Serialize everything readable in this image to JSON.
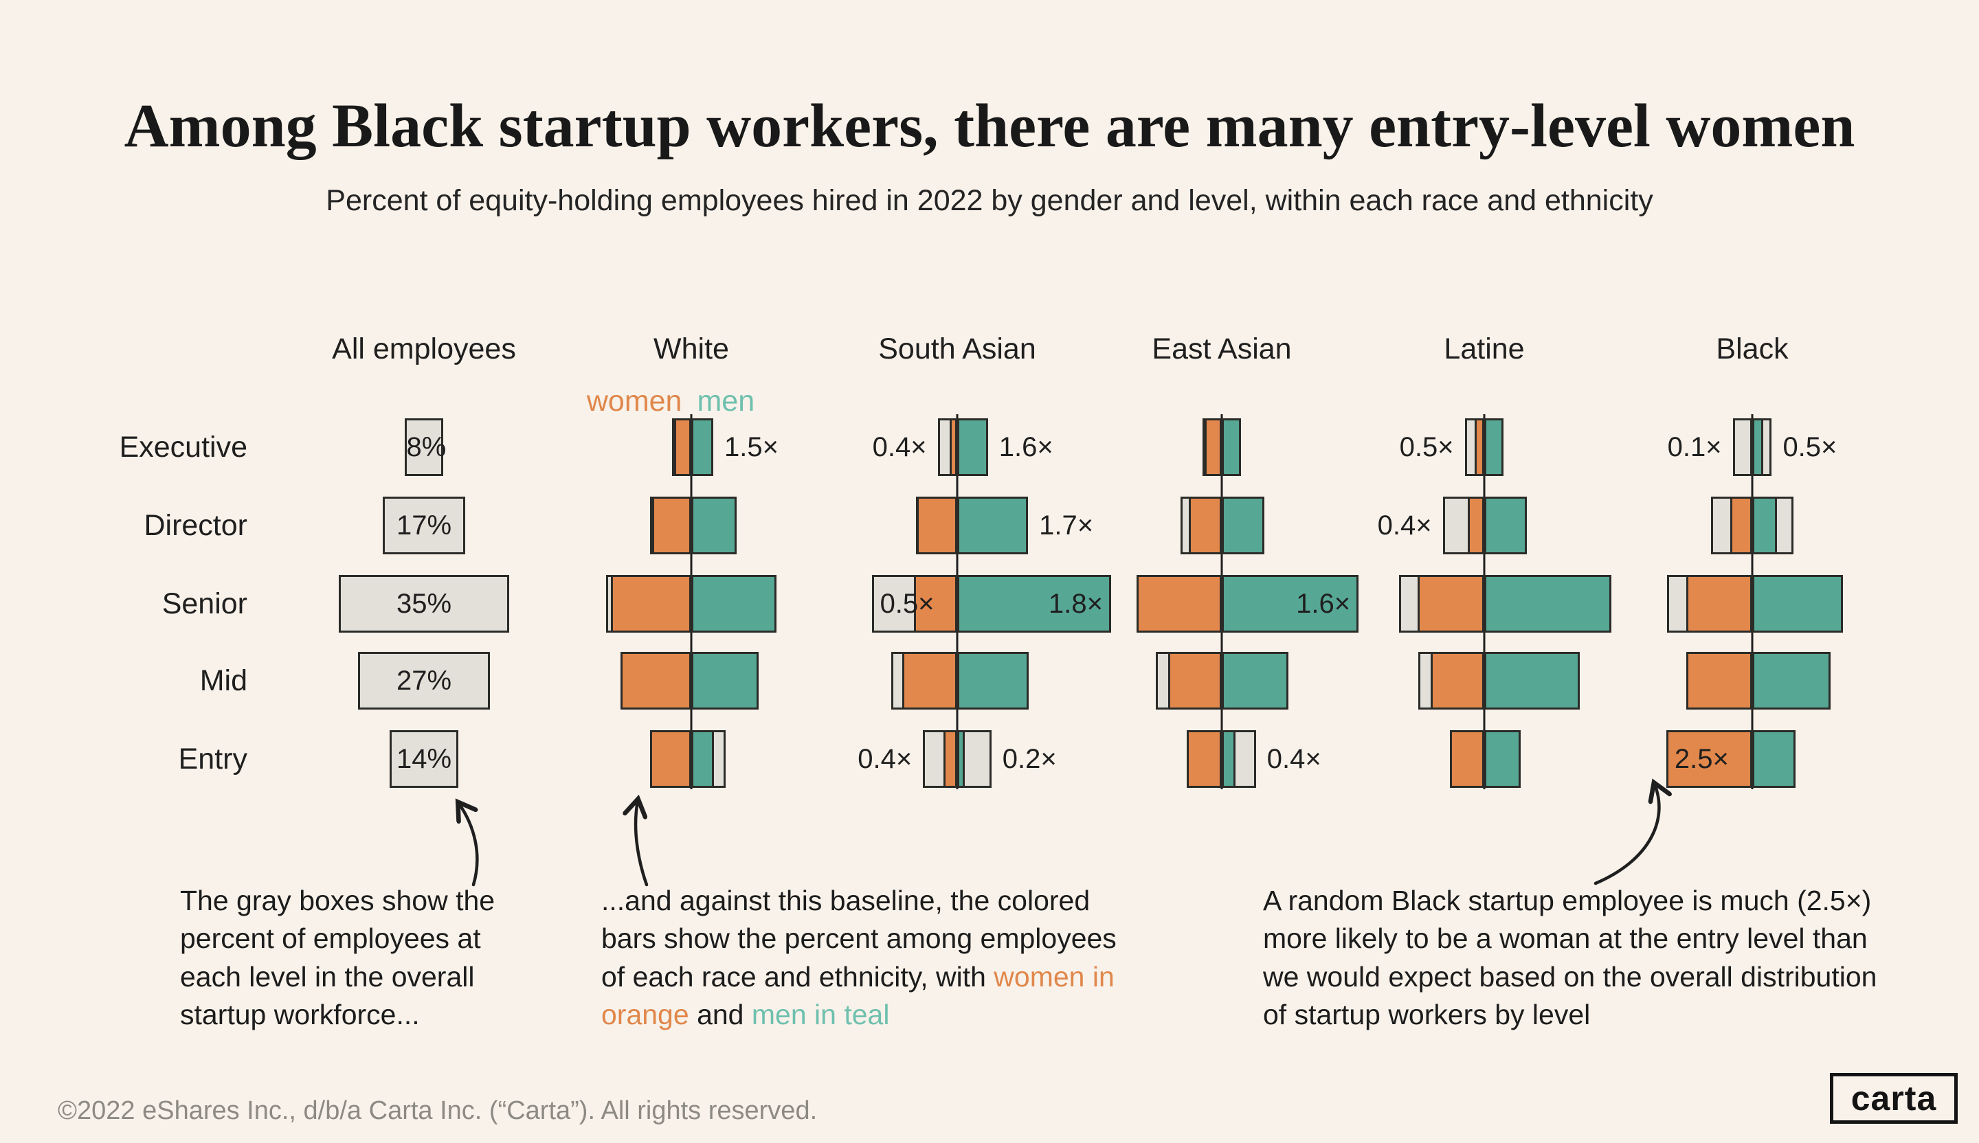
{
  "title": "Among Black startup workers, there are many entry-level women",
  "subtitle": "Percent of equity-holding employees hired in 2022 by gender and level, within each race and ethnicity",
  "legend": {
    "women": "women",
    "men": "men"
  },
  "annotations": {
    "gray_boxes": "The gray boxes show the percent of employees at each level in the overall startup workforce...",
    "colored_bars_pre": "...and against this baseline, the colored bars show the percent among employees of each race and ethnicity, with ",
    "colored_bars_women": "women in orange",
    "colored_bars_and": " and ",
    "colored_bars_men": "men in teal",
    "black_entry": "A random Black startup employee is much (2.5×) more likely to be a woman at the entry level than we would expect based on the overall distribution of startup workers by level"
  },
  "footer": "©2022 eShares Inc., d/b/a Carta Inc. (“Carta”). All rights reserved.",
  "logo": "carta",
  "colors": {
    "background": "#F8F2EA",
    "women": "#E2884C",
    "men": "#57A795",
    "gray_box": "#E3E0D9",
    "text": "#1F1F1F"
  },
  "chart_data": {
    "type": "bar",
    "subtype": "diverging_gender_by_level",
    "unit": "percent of hires within group",
    "levels": [
      "Executive",
      "Director",
      "Senior",
      "Mid",
      "Entry"
    ],
    "overall_pct": [
      8,
      17,
      35,
      27,
      14
    ],
    "groups": [
      {
        "name": "All employees",
        "kind": "baseline",
        "box_labels": [
          "8%",
          "17%",
          "35%",
          "27%",
          "14%"
        ]
      },
      {
        "name": "White",
        "women_pct": [
          3.5,
          8,
          16.5,
          14.5,
          8.5
        ],
        "men_pct": [
          4.5,
          9.3,
          17.5,
          13.8,
          4.7
        ],
        "multipliers": [
          {
            "level": "Executive",
            "side": "right",
            "text": "1.5×"
          }
        ]
      },
      {
        "name": "South Asian",
        "women_pct": [
          1.6,
          8.3,
          8.8,
          11.3,
          2.8
        ],
        "men_pct": [
          6.3,
          14.5,
          31.5,
          14.6,
          1.5
        ],
        "multipliers": [
          {
            "level": "Executive",
            "side": "left",
            "text": "0.4×"
          },
          {
            "level": "Executive",
            "side": "right",
            "text": "1.6×"
          },
          {
            "level": "Director",
            "side": "right",
            "text": "1.7×"
          },
          {
            "level": "Senior",
            "side": "inside_left",
            "text": "0.5×"
          },
          {
            "level": "Senior",
            "side": "inside_right",
            "text": "1.8×"
          },
          {
            "level": "Entry",
            "side": "left",
            "text": "0.4×"
          },
          {
            "level": "Entry",
            "side": "right",
            "text": "0.2×"
          }
        ]
      },
      {
        "name": "East Asian",
        "women_pct": [
          3.5,
          6.8,
          17.4,
          11,
          7.2
        ],
        "men_pct": [
          4,
          8.7,
          28,
          13.7,
          2.8
        ],
        "multipliers": [
          {
            "level": "Senior",
            "side": "inside_right",
            "text": "1.6×"
          },
          {
            "level": "Entry",
            "side": "right",
            "text": "0.4×"
          }
        ]
      },
      {
        "name": "Latine",
        "women_pct": [
          2,
          3.4,
          13.7,
          11,
          7.1
        ],
        "men_pct": [
          4,
          8.7,
          26,
          19.5,
          7.4
        ],
        "multipliers": [
          {
            "level": "Executive",
            "side": "left",
            "text": "0.5×"
          },
          {
            "level": "Director",
            "side": "left",
            "text": "0.4×"
          }
        ]
      },
      {
        "name": "Black",
        "women_pct": [
          0.4,
          4.5,
          13.5,
          13.5,
          17.6
        ],
        "men_pct": [
          2.3,
          5,
          18.5,
          16,
          8.8
        ],
        "multipliers": [
          {
            "level": "Executive",
            "side": "left",
            "text": "0.1×"
          },
          {
            "level": "Executive",
            "side": "right",
            "text": "0.5×"
          },
          {
            "level": "Entry",
            "side": "inside_left",
            "text": "2.5×"
          }
        ]
      }
    ]
  }
}
